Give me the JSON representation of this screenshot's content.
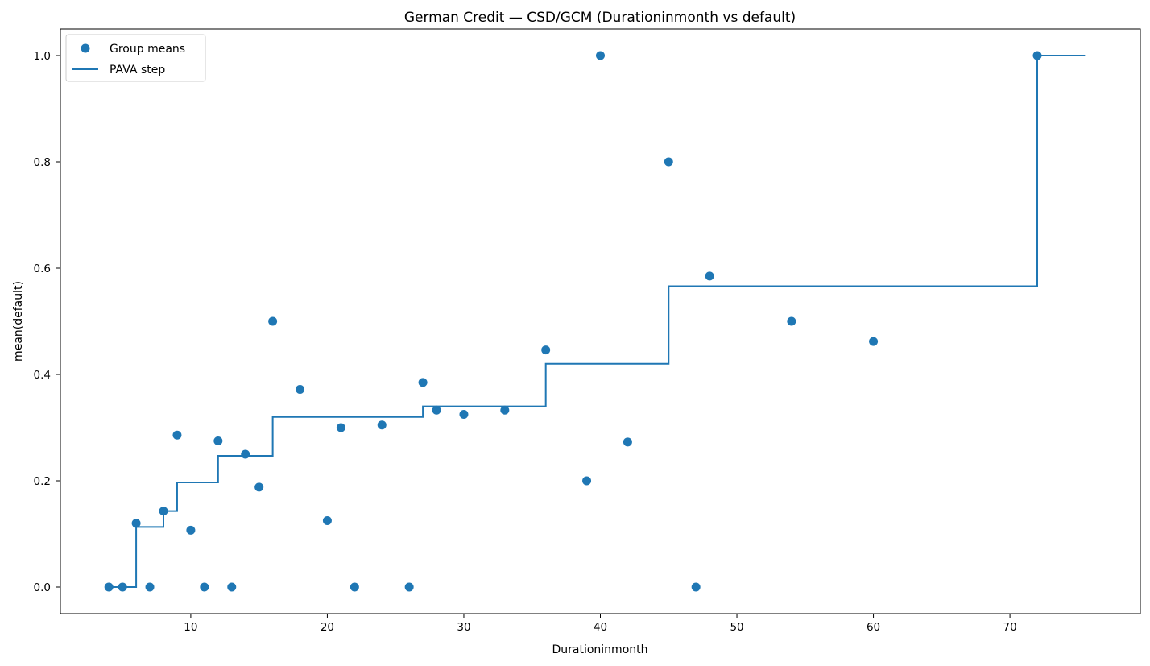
{
  "chart_data": {
    "type": "scatter",
    "title": "German Credit — CSD/GCM (Durationinmonth vs default)",
    "xlabel": "Durationinmonth",
    "ylabel": "mean(default)",
    "xlim": [
      0.45,
      79.55
    ],
    "ylim": [
      -0.05,
      1.05
    ],
    "xticks": [
      10,
      20,
      30,
      40,
      50,
      60,
      70
    ],
    "yticks": [
      0.0,
      0.2,
      0.4,
      0.6,
      0.8,
      1.0
    ],
    "xtick_labels": [
      "10",
      "20",
      "30",
      "40",
      "50",
      "60",
      "70"
    ],
    "ytick_labels": [
      "0.0",
      "0.2",
      "0.4",
      "0.6",
      "0.8",
      "1.0"
    ],
    "grid": false,
    "legend_position": "top-left",
    "colors": {
      "series": "#1f77b4"
    },
    "series": [
      {
        "name": "Group means",
        "kind": "scatter",
        "x": [
          4,
          5,
          6,
          7,
          8,
          9,
          10,
          11,
          12,
          13,
          14,
          15,
          16,
          18,
          20,
          21,
          22,
          24,
          26,
          27,
          28,
          30,
          33,
          36,
          39,
          40,
          42,
          45,
          47,
          48,
          54,
          60,
          72
        ],
        "y": [
          0.0,
          0.0,
          0.12,
          0.0,
          0.143,
          0.286,
          0.107,
          0.0,
          0.275,
          0.0,
          0.25,
          0.188,
          0.5,
          0.372,
          0.125,
          0.3,
          0.0,
          0.305,
          0.0,
          0.385,
          0.333,
          0.325,
          0.333,
          0.446,
          0.2,
          1.0,
          0.273,
          0.8,
          0.0,
          0.585,
          0.5,
          0.462,
          1.0
        ]
      },
      {
        "name": "PAVA step",
        "kind": "step",
        "x": [
          4,
          6,
          8,
          9,
          12,
          16,
          27,
          36,
          45,
          72,
          75.5
        ],
        "y": [
          0.0,
          0.113,
          0.143,
          0.197,
          0.247,
          0.32,
          0.34,
          0.42,
          0.566,
          1.0,
          1.0
        ]
      }
    ]
  }
}
